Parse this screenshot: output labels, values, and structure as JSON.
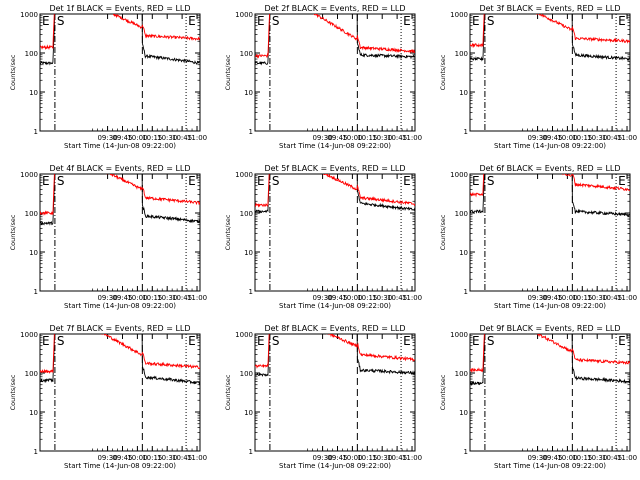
{
  "chart_data": [
    {
      "type": "line",
      "title": "Det 1f BLACK = Events, RED = LLD",
      "xlabel": "Start Time (14-Jun-08 09:22:00)",
      "ylabel": "Counts/sec",
      "yscale": "log",
      "ylim": [
        1,
        1000
      ],
      "xlim": [
        "08:22",
        "11:03"
      ],
      "x_ticks": [
        "09:30",
        "09:45",
        "10:00",
        "10:15",
        "10:30",
        "10:45",
        "11:00"
      ],
      "y_ticks": [
        "1",
        "10",
        "100",
        "1000"
      ],
      "markers": [
        {
          "label": "E",
          "time": "08:22"
        },
        {
          "label": "S",
          "time": "08:37"
        },
        {
          "label": "",
          "time": "10:05"
        },
        {
          "label": "E",
          "time": "10:49"
        }
      ],
      "series": [
        {
          "name": "Events",
          "color": "#000000",
          "start": 55,
          "plateau": 85,
          "end": 55
        },
        {
          "name": "LLD",
          "color": "#ff0000",
          "start": 140,
          "plateau": 280,
          "end": 230
        }
      ]
    },
    {
      "type": "line",
      "title": "Det 2f BLACK = Events, RED = LLD",
      "xlabel": "Start Time (14-Jun-08 09:22:00)",
      "ylabel": "Counts/sec",
      "yscale": "log",
      "ylim": [
        1,
        1000
      ],
      "xlim": [
        "08:22",
        "11:03"
      ],
      "x_ticks": [
        "09:30",
        "09:45",
        "10:00",
        "10:15",
        "10:30",
        "10:45",
        "11:00"
      ],
      "y_ticks": [
        "1",
        "10",
        "100",
        "1000"
      ],
      "markers": [
        {
          "label": "E",
          "time": "08:22"
        },
        {
          "label": "S",
          "time": "08:37"
        },
        {
          "label": "",
          "time": "10:05"
        },
        {
          "label": "E",
          "time": "10:49"
        }
      ],
      "series": [
        {
          "name": "Events",
          "color": "#000000",
          "start": 55,
          "plateau": 90,
          "end": 80
        },
        {
          "name": "LLD",
          "color": "#ff0000",
          "start": 85,
          "plateau": 140,
          "end": 110
        }
      ]
    },
    {
      "type": "line",
      "title": "Det 3f BLACK = Events, RED = LLD",
      "xlabel": "Start Time (14-Jun-08 09:22:00)",
      "ylabel": "Counts/sec",
      "yscale": "log",
      "ylim": [
        1,
        1000
      ],
      "xlim": [
        "08:22",
        "11:03"
      ],
      "x_ticks": [
        "09:30",
        "09:45",
        "10:00",
        "10:15",
        "10:30",
        "10:45",
        "11:00"
      ],
      "y_ticks": [
        "1",
        "10",
        "100",
        "1000"
      ],
      "markers": [
        {
          "label": "E",
          "time": "08:22"
        },
        {
          "label": "S",
          "time": "08:37"
        },
        {
          "label": "",
          "time": "10:05"
        },
        {
          "label": "E",
          "time": "10:49"
        }
      ],
      "series": [
        {
          "name": "Events",
          "color": "#000000",
          "start": 70,
          "plateau": 90,
          "end": 70
        },
        {
          "name": "LLD",
          "color": "#ff0000",
          "start": 160,
          "plateau": 240,
          "end": 200
        }
      ]
    },
    {
      "type": "line",
      "title": "Det 4f BLACK = Events, RED = LLD",
      "xlabel": "Start Time (14-Jun-08 09:22:00)",
      "ylabel": "Counts/sec",
      "yscale": "log",
      "ylim": [
        1,
        1000
      ],
      "xlim": [
        "08:22",
        "11:03"
      ],
      "x_ticks": [
        "09:30",
        "09:45",
        "10:00",
        "10:15",
        "10:30",
        "10:45",
        "11:00"
      ],
      "y_ticks": [
        "1",
        "10",
        "100",
        "1000"
      ],
      "markers": [
        {
          "label": "E",
          "time": "08:22"
        },
        {
          "label": "S",
          "time": "08:37"
        },
        {
          "label": "",
          "time": "10:05"
        },
        {
          "label": "E",
          "time": "10:49"
        }
      ],
      "series": [
        {
          "name": "Events",
          "color": "#000000",
          "start": 55,
          "plateau": 85,
          "end": 60
        },
        {
          "name": "LLD",
          "color": "#ff0000",
          "start": 100,
          "plateau": 250,
          "end": 180
        }
      ]
    },
    {
      "type": "line",
      "title": "Det 5f BLACK = Events, RED = LLD",
      "xlabel": "Start Time (14-Jun-08 09:22:00)",
      "ylabel": "Counts/sec",
      "yscale": "log",
      "ylim": [
        1,
        1000
      ],
      "xlim": [
        "08:22",
        "11:03"
      ],
      "x_ticks": [
        "09:30",
        "09:45",
        "10:00",
        "10:15",
        "10:30",
        "10:45",
        "11:00"
      ],
      "y_ticks": [
        "1",
        "10",
        "100",
        "1000"
      ],
      "markers": [
        {
          "label": "E",
          "time": "08:22"
        },
        {
          "label": "S",
          "time": "08:37"
        },
        {
          "label": "",
          "time": "10:05"
        },
        {
          "label": "E",
          "time": "10:49"
        }
      ],
      "series": [
        {
          "name": "Events",
          "color": "#000000",
          "start": 110,
          "plateau": 180,
          "end": 120
        },
        {
          "name": "LLD",
          "color": "#ff0000",
          "start": 160,
          "plateau": 250,
          "end": 170
        }
      ]
    },
    {
      "type": "line",
      "title": "Det 6f BLACK = Events, RED = LLD",
      "xlabel": "Start Time (14-Jun-08 09:22:00)",
      "ylabel": "Counts/sec",
      "yscale": "log",
      "ylim": [
        1,
        1000
      ],
      "xlim": [
        "08:22",
        "11:03"
      ],
      "x_ticks": [
        "09:30",
        "09:45",
        "10:00",
        "10:15",
        "10:30",
        "10:45",
        "11:00"
      ],
      "y_ticks": [
        "1",
        "10",
        "100",
        "1000"
      ],
      "markers": [
        {
          "label": "E",
          "time": "08:22"
        },
        {
          "label": "S",
          "time": "08:37"
        },
        {
          "label": "",
          "time": "10:05"
        },
        {
          "label": "E",
          "time": "10:49"
        }
      ],
      "series": [
        {
          "name": "Events",
          "color": "#000000",
          "start": 110,
          "plateau": 110,
          "end": 90
        },
        {
          "name": "LLD",
          "color": "#ff0000",
          "start": 300,
          "plateau": 550,
          "end": 400
        }
      ]
    },
    {
      "type": "line",
      "title": "Det 7f BLACK = Events, RED = LLD",
      "xlabel": "Start Time (14-Jun-08 09:22:00)",
      "ylabel": "Counts/sec",
      "yscale": "log",
      "ylim": [
        1,
        1000
      ],
      "xlim": [
        "08:22",
        "11:03"
      ],
      "x_ticks": [
        "09:30",
        "09:45",
        "10:00",
        "10:15",
        "10:30",
        "10:45",
        "11:00"
      ],
      "y_ticks": [
        "1",
        "10",
        "100",
        "1000"
      ],
      "markers": [
        {
          "label": "E",
          "time": "08:22"
        },
        {
          "label": "S",
          "time": "08:37"
        },
        {
          "label": "",
          "time": "10:05"
        },
        {
          "label": "E",
          "time": "10:49"
        }
      ],
      "series": [
        {
          "name": "Events",
          "color": "#000000",
          "start": 65,
          "plateau": 80,
          "end": 55
        },
        {
          "name": "LLD",
          "color": "#ff0000",
          "start": 110,
          "plateau": 180,
          "end": 140
        }
      ]
    },
    {
      "type": "line",
      "title": "Det 8f BLACK = Events, RED = LLD",
      "xlabel": "Start Time (14-Jun-08 09:22:00)",
      "ylabel": "Counts/sec",
      "yscale": "log",
      "ylim": [
        1,
        1000
      ],
      "xlim": [
        "08:22",
        "11:03"
      ],
      "x_ticks": [
        "09:30",
        "09:45",
        "10:00",
        "10:15",
        "10:30",
        "10:45",
        "11:00"
      ],
      "y_ticks": [
        "1",
        "10",
        "100",
        "1000"
      ],
      "markers": [
        {
          "label": "E",
          "time": "08:22"
        },
        {
          "label": "S",
          "time": "08:37"
        },
        {
          "label": "",
          "time": "10:05"
        },
        {
          "label": "E",
          "time": "10:49"
        }
      ],
      "series": [
        {
          "name": "Events",
          "color": "#000000",
          "start": 90,
          "plateau": 120,
          "end": 100
        },
        {
          "name": "LLD",
          "color": "#ff0000",
          "start": 150,
          "plateau": 300,
          "end": 220
        }
      ]
    },
    {
      "type": "line",
      "title": "Det 9f BLACK = Events, RED = LLD",
      "xlabel": "Start Time (14-Jun-08 09:22:00)",
      "ylabel": "Counts/sec",
      "yscale": "log",
      "ylim": [
        1,
        1000
      ],
      "xlim": [
        "08:22",
        "11:03"
      ],
      "x_ticks": [
        "09:30",
        "09:45",
        "10:00",
        "10:15",
        "10:30",
        "10:45",
        "11:00"
      ],
      "y_ticks": [
        "1",
        "10",
        "100",
        "1000"
      ],
      "markers": [
        {
          "label": "E",
          "time": "08:22"
        },
        {
          "label": "S",
          "time": "08:37"
        },
        {
          "label": "",
          "time": "10:05"
        },
        {
          "label": "E",
          "time": "10:49"
        }
      ],
      "series": [
        {
          "name": "Events",
          "color": "#000000",
          "start": 55,
          "plateau": 75,
          "end": 60
        },
        {
          "name": "LLD",
          "color": "#ff0000",
          "start": 120,
          "plateau": 220,
          "end": 180
        }
      ]
    }
  ]
}
